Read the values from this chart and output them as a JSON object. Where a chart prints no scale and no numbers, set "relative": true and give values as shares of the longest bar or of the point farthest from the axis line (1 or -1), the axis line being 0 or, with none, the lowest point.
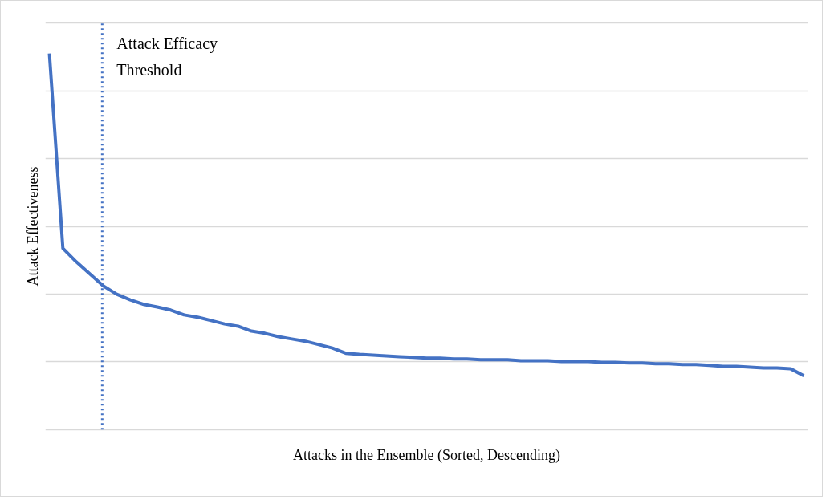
{
  "chart_data": {
    "type": "line",
    "relative": true,
    "xlabel": "Attacks in the Ensemble (Sorted, Descending)",
    "ylabel": "Attack Effectiveness",
    "categories": [
      null,
      null,
      null,
      null,
      null,
      null,
      null,
      null,
      null,
      null,
      null,
      null,
      null,
      null,
      null,
      null,
      null,
      null,
      null,
      null,
      null,
      null,
      null,
      null,
      null,
      null,
      null,
      null,
      null,
      null,
      null,
      null,
      null,
      null,
      null,
      null,
      null,
      null,
      null,
      null,
      null,
      null,
      null,
      null,
      null,
      null,
      null,
      null,
      null,
      null,
      null,
      null,
      null,
      null,
      null,
      null,
      null
    ],
    "series": [
      {
        "color": "#4472c4",
        "values": [
          1.0,
          0.482,
          0.446,
          0.414,
          0.382,
          0.36,
          0.345,
          0.333,
          0.326,
          0.318,
          0.305,
          0.299,
          0.29,
          0.281,
          0.275,
          0.262,
          0.256,
          0.247,
          0.241,
          0.235,
          0.226,
          0.217,
          0.203,
          0.2,
          0.198,
          0.196,
          0.194,
          0.192,
          0.19,
          0.19,
          0.188,
          0.188,
          0.186,
          0.186,
          0.186,
          0.183,
          0.183,
          0.183,
          0.181,
          0.181,
          0.181,
          0.179,
          0.179,
          0.177,
          0.177,
          0.175,
          0.175,
          0.173,
          0.173,
          0.171,
          0.168,
          0.168,
          0.166,
          0.164,
          0.164,
          0.162,
          0.143
        ]
      }
    ],
    "annotations": [
      "Attack Efficacy Threshold"
    ],
    "grid": "y",
    "marker": "none",
    "line_style": "solid"
  }
}
